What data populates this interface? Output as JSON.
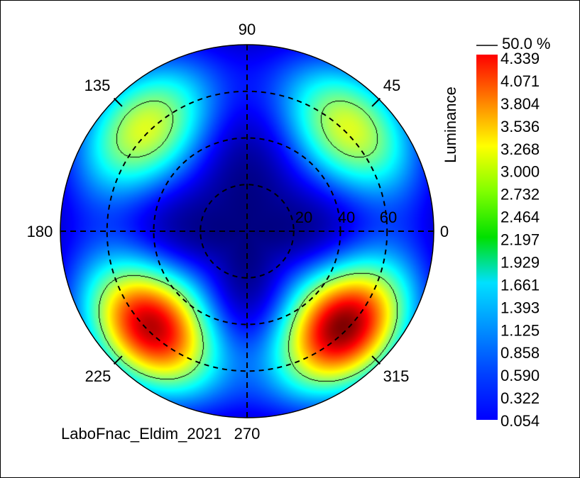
{
  "chart_data": {
    "type": "heatmap",
    "subtype": "polar-conoscopic-luminance",
    "colorbar": {
      "label": "Luminance",
      "ticks": [
        "4.339",
        "4.071",
        "3.804",
        "3.536",
        "3.268",
        "3.000",
        "2.732",
        "2.464",
        "2.197",
        "1.929",
        "1.661",
        "1.393",
        "1.125",
        "0.858",
        "0.590",
        "0.322",
        "0.054"
      ],
      "min": 0.054,
      "max": 4.339,
      "colormap": "jet"
    },
    "contour": {
      "label": "50.0 %",
      "level_fraction": 0.5
    },
    "azimuth_labels": [
      "0",
      "45",
      "90",
      "135",
      "180",
      "225",
      "270",
      "315"
    ],
    "radial_labels": [
      "20",
      "40",
      "60"
    ],
    "radial_rings": [
      20,
      40,
      60
    ],
    "angle_max": 80,
    "lobes": [
      {
        "azimuth_deg": 45,
        "incidence_deg": 62,
        "peak": 2.6
      },
      {
        "azimuth_deg": 135,
        "incidence_deg": 62,
        "peak": 2.6
      },
      {
        "azimuth_deg": 225,
        "incidence_deg": 58,
        "peak": 4.1
      },
      {
        "azimuth_deg": 315,
        "incidence_deg": 58,
        "peak": 4.339
      }
    ],
    "grid": true,
    "legend_position": "right"
  },
  "caption": "LaboFnac_Eldim_2021"
}
